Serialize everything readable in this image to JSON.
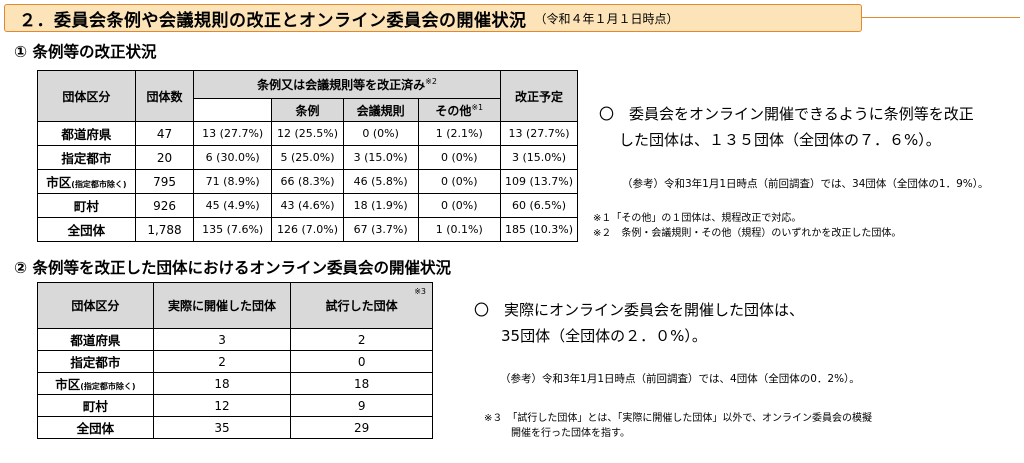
{
  "title": {
    "main": "２．委員会条例や会議規則の改正とオンライン委員会の開催状況",
    "sub": "（令和４年１月１日時点）"
  },
  "section1": {
    "heading": "① 条例等の改正状況",
    "table": {
      "col_group": "団体区分",
      "col_count": "団体数",
      "col_revised": "条例又は会議規則等を改正済み",
      "col_revised_mark": "※2",
      "col_jourei": "条例",
      "col_kaigi": "会議規則",
      "col_other": "その他",
      "col_other_mark": "※1",
      "col_planned": "改正予定",
      "rows": [
        {
          "group": "都道府県",
          "group_note": "",
          "count": "47",
          "total": "13",
          "total_pct": "(27.7%)",
          "jourei": "12",
          "jourei_pct": "(25.5%)",
          "kaigi": "0",
          "kaigi_pct": "(0%)",
          "other": "1",
          "other_pct": "(2.1%)",
          "planned": "13",
          "planned_pct": "(27.7%)"
        },
        {
          "group": "指定都市",
          "group_note": "",
          "count": "20",
          "total": "6",
          "total_pct": "(30.0%)",
          "jourei": "5",
          "jourei_pct": "(25.0%)",
          "kaigi": "3",
          "kaigi_pct": "(15.0%)",
          "other": "0",
          "other_pct": "(0%)",
          "planned": "3",
          "planned_pct": "(15.0%)"
        },
        {
          "group": "市区",
          "group_note": "(指定都市除く)",
          "count": "795",
          "total": "71",
          "total_pct": "(8.9%)",
          "jourei": "66",
          "jourei_pct": "(8.3%)",
          "kaigi": "46",
          "kaigi_pct": "(5.8%)",
          "other": "0",
          "other_pct": "(0%)",
          "planned": "109",
          "planned_pct": "(13.7%)"
        },
        {
          "group": "町村",
          "group_note": "",
          "count": "926",
          "total": "45",
          "total_pct": "(4.9%)",
          "jourei": "43",
          "jourei_pct": "(4.6%)",
          "kaigi": "18",
          "kaigi_pct": "(1.9%)",
          "other": "0",
          "other_pct": "(0%)",
          "planned": "60",
          "planned_pct": "(6.5%)"
        },
        {
          "group": "全団体",
          "group_note": "",
          "count": "1,788",
          "total": "135",
          "total_pct": "(7.6%)",
          "jourei": "126",
          "jourei_pct": "(7.0%)",
          "kaigi": "67",
          "kaigi_pct": "(3.7%)",
          "other": "1",
          "other_pct": "(0.1%)",
          "planned": "185",
          "planned_pct": "(10.3%)"
        }
      ]
    },
    "summary_line1": "〇　委員会をオンライン開催できるように条例等を改正",
    "summary_line2": "した団体は、１３５団体（全団体の７．６%）。",
    "reference": "（参考）令和3年1月1日時点（前回調査）では、34団体（全団体の1．9%）。",
    "footnote1": "※１「その他」の１団体は、規程改正で対応。",
    "footnote2": "※２　条例・会議規則・その他（規程）のいずれかを改正した団体。"
  },
  "section2": {
    "heading": "② 条例等を改正した団体におけるオンライン委員会の開催状況",
    "table": {
      "col_group": "団体区分",
      "col_held": "実際に開催した団体",
      "col_trial": "試行した団体",
      "col_trial_mark": "※3",
      "rows": [
        {
          "group": "都道府県",
          "group_note": "",
          "held": "3",
          "trial": "2"
        },
        {
          "group": "指定都市",
          "group_note": "",
          "held": "2",
          "trial": "0"
        },
        {
          "group": "市区",
          "group_note": "(指定都市除く)",
          "held": "18",
          "trial": "18"
        },
        {
          "group": "町村",
          "group_note": "",
          "held": "12",
          "trial": "9"
        },
        {
          "group": "全団体",
          "group_note": "",
          "held": "35",
          "trial": "29"
        }
      ]
    },
    "summary_line1": "〇　実際にオンライン委員会を開催した団体は、",
    "summary_line2": "35団体（全団体の２．０%）。",
    "reference": "（参考）令和3年1月1日時点（前回調査）では、4団体（全団体の0．2%）。",
    "footnote_line1": "※３　「試行した団体」とは、「実際に開催した団体」以外で、オンライン委員会の模擬",
    "footnote_line2": "開催を行った団体を指す。"
  }
}
